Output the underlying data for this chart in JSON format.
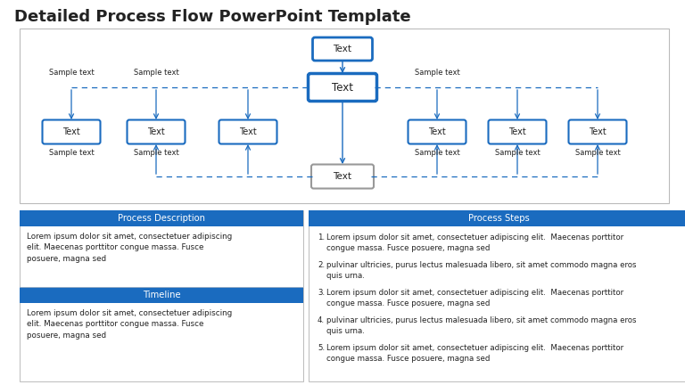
{
  "title": "Detailed Process Flow PowerPoint Template",
  "title_fontsize": 13,
  "bg_color": "#ffffff",
  "diagram_border": "#bbbbbb",
  "blue": "#1a6bbf",
  "blue_header": "#1a6bbf",
  "gray_box_color": "#999999",
  "text_color_white": "#ffffff",
  "text_color_dark": "#222222",
  "box_label": "Text",
  "lorem_short": "Lorem ipsum dolor sit amet, consectetuer adipiscing\nelit. Maecenas porttitor congue massa. Fusce\nposuere, magna sed",
  "process_desc_title": "Process Description",
  "timeline_title": "Timeline",
  "process_steps_title": "Process Steps",
  "steps": [
    "Lorem ipsum dolor sit amet, consectetuer adipiscing elit.  Maecenas porttitor\ncongue massa. Fusce posuere, magna sed",
    "pulvinar ultricies, purus lectus malesuada libero, sit amet commodo magna eros\nquis urna.",
    "Lorem ipsum dolor sit amet, consectetuer adipiscing elit.  Maecenas porttitor\ncongue massa. Fusce posuere, magna sed",
    "pulvinar ultricies, purus lectus malesuada libero, sit amet commodo magna eros\nquis urna.",
    "Lorem ipsum dolor sit amet, consectetuer adipiscing elit.  Maecenas porttitor\ncongue massa. Fusce posuere, magna sed"
  ]
}
